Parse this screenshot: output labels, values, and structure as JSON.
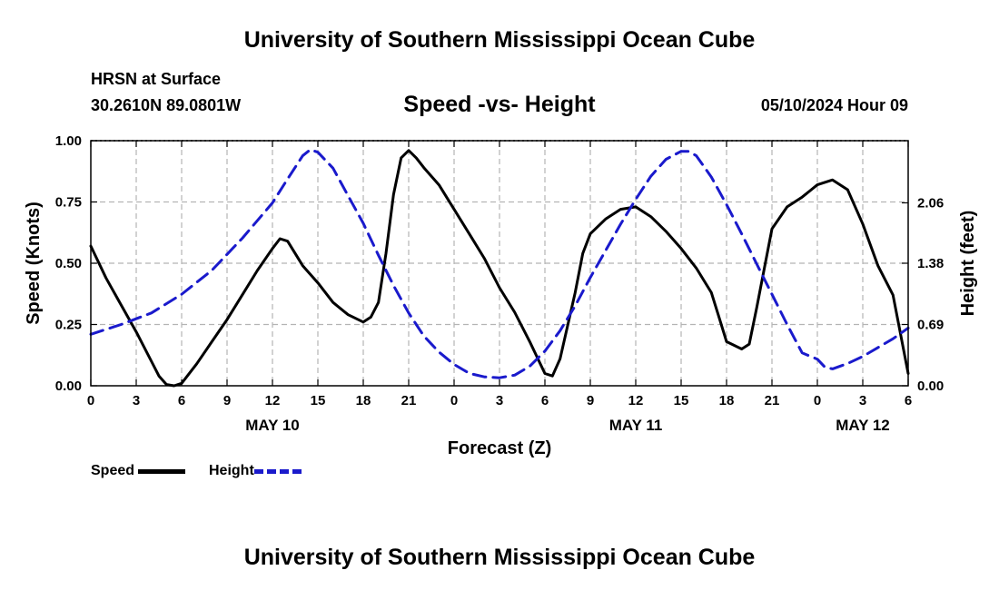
{
  "header": {
    "title": "University of Southern Mississippi Ocean Cube",
    "station": "HRSN at Surface",
    "coords": "30.2610N  89.0801W",
    "issue_time": "05/10/2024 Hour 09"
  },
  "footer": {
    "title": "University of Southern Mississippi Ocean Cube"
  },
  "chart_data": {
    "type": "line",
    "title": "Speed -vs- Height",
    "xlabel": "Forecast (Z)",
    "ylabel_left": "Speed (Knots)",
    "ylabel_right": "Height (feet)",
    "x_unit": "forecast hours from May 10 00Z",
    "xlim": [
      0,
      54
    ],
    "ylim_left": [
      0,
      1.0
    ],
    "ylim_right": [
      0.0,
      2.76
    ],
    "grid": true,
    "x_ticks": [
      0,
      3,
      6,
      9,
      12,
      15,
      18,
      21,
      24,
      27,
      30,
      33,
      36,
      39,
      42,
      45,
      48,
      51,
      54
    ],
    "x_tick_labels": [
      "0",
      "3",
      "6",
      "9",
      "12",
      "15",
      "18",
      "21",
      "0",
      "3",
      "6",
      "9",
      "12",
      "15",
      "18",
      "21",
      "0",
      "3",
      "6"
    ],
    "date_labels": [
      {
        "x": 12,
        "label": "MAY 10"
      },
      {
        "x": 36,
        "label": "MAY 11"
      },
      {
        "x": 51,
        "label": "MAY 12"
      }
    ],
    "y_left_ticks": [
      0.0,
      0.25,
      0.5,
      0.75,
      1.0
    ],
    "y_left_tick_labels": [
      "0.00",
      "0.25",
      "0.50",
      "0.75",
      "1.00"
    ],
    "y_right_ticks": [
      0.0,
      0.69,
      1.38,
      2.06
    ],
    "y_right_tick_labels": [
      "0.00",
      "0.69",
      "1.38",
      "2.06"
    ],
    "series": [
      {
        "name": "Speed",
        "axis": "left",
        "color": "#000000",
        "dash": false,
        "x": [
          0,
          1,
          2,
          3,
          4,
          4.5,
          5,
          5.5,
          6,
          7,
          8,
          9,
          10,
          11,
          12,
          12.5,
          13,
          14,
          15,
          16,
          17,
          18,
          18.5,
          19,
          19.5,
          20,
          20.5,
          21,
          21.5,
          22,
          23,
          24,
          25,
          26,
          27,
          28,
          29,
          30,
          30.5,
          31,
          32,
          32.5,
          33,
          34,
          35,
          36,
          37,
          38,
          39,
          40,
          41,
          41.5,
          42,
          43,
          43.5,
          44,
          45,
          46,
          47,
          48,
          49,
          50,
          51,
          52,
          53,
          54
        ],
        "y": [
          0.57,
          0.44,
          0.33,
          0.22,
          0.1,
          0.04,
          0.005,
          0.0,
          0.01,
          0.09,
          0.18,
          0.27,
          0.37,
          0.47,
          0.56,
          0.6,
          0.59,
          0.49,
          0.42,
          0.34,
          0.29,
          0.26,
          0.28,
          0.34,
          0.54,
          0.78,
          0.93,
          0.96,
          0.93,
          0.89,
          0.82,
          0.72,
          0.62,
          0.52,
          0.4,
          0.3,
          0.18,
          0.05,
          0.04,
          0.11,
          0.38,
          0.54,
          0.62,
          0.68,
          0.72,
          0.73,
          0.69,
          0.63,
          0.56,
          0.48,
          0.38,
          0.28,
          0.18,
          0.15,
          0.17,
          0.32,
          0.64,
          0.73,
          0.77,
          0.82,
          0.84,
          0.8,
          0.66,
          0.49,
          0.37,
          0.05
        ]
      },
      {
        "name": "Height",
        "axis": "right",
        "color": "#1a1acc",
        "dash": true,
        "x": [
          0,
          2,
          4,
          6,
          8,
          10,
          12,
          13,
          14,
          14.5,
          15,
          16,
          17,
          18,
          19,
          20,
          21,
          22,
          23,
          24,
          25,
          26,
          27,
          28,
          29,
          30,
          31,
          32,
          33,
          34,
          35,
          36,
          37,
          38,
          39,
          39.5,
          40,
          41,
          42,
          43,
          44,
          45,
          46,
          46.5,
          47,
          48,
          48.5,
          49,
          50,
          51,
          52,
          53,
          54
        ],
        "y": [
          0.58,
          0.69,
          0.82,
          1.03,
          1.3,
          1.66,
          2.06,
          2.33,
          2.59,
          2.66,
          2.63,
          2.45,
          2.14,
          1.83,
          1.47,
          1.13,
          0.82,
          0.56,
          0.38,
          0.24,
          0.14,
          0.1,
          0.09,
          0.12,
          0.22,
          0.39,
          0.62,
          0.9,
          1.22,
          1.52,
          1.82,
          2.1,
          2.36,
          2.55,
          2.64,
          2.64,
          2.59,
          2.35,
          2.04,
          1.71,
          1.37,
          1.03,
          0.69,
          0.53,
          0.37,
          0.3,
          0.21,
          0.19,
          0.25,
          0.33,
          0.43,
          0.53,
          0.65
        ]
      }
    ]
  }
}
